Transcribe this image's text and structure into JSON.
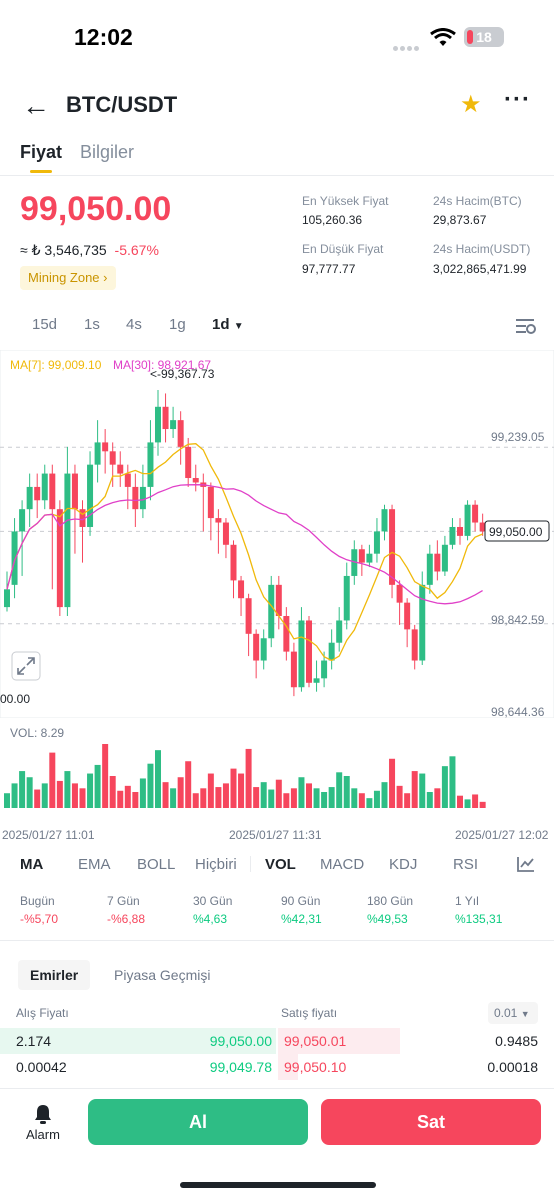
{
  "status": {
    "time": "12:02",
    "battery": "18"
  },
  "header": {
    "pair": "BTC/USDT"
  },
  "tabs": [
    {
      "label": "Fiyat"
    },
    {
      "label": "Bilgiler"
    }
  ],
  "ticker": {
    "price": "99,050.00",
    "local_price": "≈ ₺ 3,546,735",
    "change": "-5.67%",
    "mining_zone": "Mining Zone",
    "high_label": "En Yüksek Fiyat",
    "high_value": "105,260.36",
    "low_label": "En Düşük Fiyat",
    "low_value": "97,777.77",
    "vol_btc_label": "24s Hacim(BTC)",
    "vol_btc_value": "29,873.67",
    "vol_usdt_label": "24s Hacim(USDT)",
    "vol_usdt_value": "3,022,865,471.99"
  },
  "timeframes": [
    "15d",
    "1s",
    "4s",
    "1g",
    "1d"
  ],
  "chart_info": {
    "ma7": "MA[7]: 99,009.10",
    "ma30": "MA[30]: 98,921.67",
    "high_marker": "<-99,367.73",
    "current_price": "99,050.00",
    "left_label": "00.00",
    "vol_label": "VOL: 8.29",
    "times": [
      "2025/01/27 11:01",
      "2025/01/27 11:31",
      "2025/01/27 12:02"
    ],
    "colors": {
      "up": "#2ebd85",
      "down": "#f6465d",
      "ma7": "#f0b90b",
      "ma30": "#e040c8"
    }
  },
  "chart_data": {
    "type": "candlestick",
    "y_ticks": [
      "99,239.05",
      "98,842.59",
      "98,644.36"
    ],
    "ylim": [
      98644.36,
      99367.73
    ],
    "current": 99050.0,
    "candles": [
      [
        98880,
        98920,
        98870,
        98960
      ],
      [
        98930,
        99050,
        98900,
        99080
      ],
      [
        99050,
        99100,
        98950,
        99120
      ],
      [
        99100,
        99150,
        99060,
        99180
      ],
      [
        99150,
        99120,
        99080,
        99180
      ],
      [
        99120,
        99180,
        99100,
        99200
      ],
      [
        99180,
        99100,
        98920,
        99200
      ],
      [
        99100,
        98880,
        98860,
        99120
      ],
      [
        98880,
        99180,
        98860,
        99240
      ],
      [
        99180,
        99100,
        99000,
        99200
      ],
      [
        99100,
        99060,
        98980,
        99120
      ],
      [
        99060,
        99200,
        99040,
        99230
      ],
      [
        99200,
        99250,
        99160,
        99300
      ],
      [
        99250,
        99230,
        99180,
        99280
      ],
      [
        99230,
        99200,
        99150,
        99250
      ],
      [
        99200,
        99180,
        99150,
        99230
      ],
      [
        99180,
        99150,
        99100,
        99200
      ],
      [
        99150,
        99100,
        99060,
        99180
      ],
      [
        99100,
        99150,
        99080,
        99200
      ],
      [
        99150,
        99250,
        99120,
        99300
      ],
      [
        99250,
        99330,
        99220,
        99367.73
      ],
      [
        99330,
        99280,
        99250,
        99360
      ],
      [
        99280,
        99300,
        99260,
        99330
      ],
      [
        99300,
        99240,
        99200,
        99320
      ],
      [
        99240,
        99170,
        99150,
        99260
      ],
      [
        99170,
        99160,
        99140,
        99200
      ],
      [
        99160,
        99150,
        99050,
        99180
      ],
      [
        99150,
        99080,
        99030,
        99160
      ],
      [
        99080,
        99070,
        99000,
        99100
      ],
      [
        99070,
        99020,
        98990,
        99080
      ],
      [
        99020,
        98940,
        98900,
        99030
      ],
      [
        98940,
        98900,
        98860,
        98950
      ],
      [
        98900,
        98820,
        98770,
        98910
      ],
      [
        98820,
        98760,
        98720,
        98830
      ],
      [
        98760,
        98810,
        98740,
        98830
      ],
      [
        98810,
        98930,
        98790,
        98950
      ],
      [
        98930,
        98860,
        98830,
        98950
      ],
      [
        98860,
        98780,
        98760,
        98880
      ],
      [
        98780,
        98700,
        98680,
        98800
      ],
      [
        98700,
        98850,
        98690,
        98880
      ],
      [
        98850,
        98710,
        98700,
        98860
      ],
      [
        98710,
        98720,
        98690,
        98760
      ],
      [
        98720,
        98760,
        98700,
        98780
      ],
      [
        98760,
        98800,
        98740,
        98830
      ],
      [
        98800,
        98850,
        98780,
        98880
      ],
      [
        98850,
        98950,
        98830,
        98980
      ],
      [
        98950,
        99010,
        98930,
        99030
      ],
      [
        99010,
        98980,
        98950,
        99020
      ],
      [
        98980,
        99000,
        98970,
        99020
      ],
      [
        99000,
        99050,
        98980,
        99080
      ],
      [
        99050,
        99100,
        99030,
        99110
      ],
      [
        99100,
        98930,
        98900,
        99110
      ],
      [
        98930,
        98890,
        98840,
        98940
      ],
      [
        98890,
        98830,
        98790,
        98900
      ],
      [
        98830,
        98760,
        98740,
        98840
      ],
      [
        98760,
        98930,
        98750,
        98960
      ],
      [
        98930,
        99000,
        98910,
        99020
      ],
      [
        99000,
        98960,
        98940,
        99030
      ],
      [
        98960,
        99020,
        98950,
        99040
      ],
      [
        99020,
        99060,
        99010,
        99080
      ],
      [
        99060,
        99040,
        99020,
        99080
      ],
      [
        99040,
        99110,
        99030,
        99120
      ],
      [
        99110,
        99070,
        99050,
        99120
      ],
      [
        99070,
        99050,
        99040,
        99090
      ]
    ],
    "volumes": [
      1.2,
      2.0,
      3.0,
      2.5,
      1.5,
      2.0,
      4.5,
      2.2,
      3.0,
      2.0,
      1.6,
      2.8,
      3.5,
      5.2,
      2.6,
      1.4,
      1.8,
      1.3,
      2.4,
      3.6,
      4.7,
      2.1,
      1.6,
      2.5,
      3.8,
      1.2,
      1.6,
      2.8,
      1.7,
      2.0,
      3.2,
      2.8,
      4.8,
      1.7,
      2.1,
      1.5,
      2.3,
      1.2,
      1.6,
      2.5,
      2.0,
      1.6,
      1.3,
      1.7,
      2.9,
      2.6,
      1.6,
      1.2,
      0.8,
      1.4,
      2.1,
      4.0,
      1.8,
      1.2,
      3.0,
      2.8,
      1.3,
      1.6,
      3.4,
      4.2,
      1.0,
      0.7,
      1.1,
      0.5
    ]
  },
  "indicators": [
    "MA",
    "EMA",
    "BOLL",
    "Hiçbiri",
    "VOL",
    "MACD",
    "KDJ",
    "RSI"
  ],
  "performance": [
    {
      "label": "Bugün",
      "value": "-%5,70",
      "dir": "neg"
    },
    {
      "label": "7 Gün",
      "value": "-%6,88",
      "dir": "neg"
    },
    {
      "label": "30 Gün",
      "value": "%4,63",
      "dir": "pos"
    },
    {
      "label": "90 Gün",
      "value": "%42,31",
      "dir": "pos"
    },
    {
      "label": "180 Gün",
      "value": "%49,53",
      "dir": "pos"
    },
    {
      "label": "1 Yıl",
      "value": "%135,31",
      "dir": "pos"
    }
  ],
  "orderbook": {
    "tabs": [
      "Emirler",
      "Piyasa Geçmişi"
    ],
    "buy_label": "Alış Fiyatı",
    "sell_label": "Satış fiyatı",
    "precision": "0.01",
    "rows": [
      {
        "bid_qty": "2.174",
        "bid_price": "99,050.00",
        "ask_price": "99,050.01",
        "ask_qty": "0.9485"
      },
      {
        "bid_qty": "0.00042",
        "bid_price": "99,049.78",
        "ask_price": "99,050.10",
        "ask_qty": "0.00018"
      }
    ]
  },
  "footer": {
    "alarm": "Alarm",
    "buy": "Al",
    "sell": "Sat"
  }
}
